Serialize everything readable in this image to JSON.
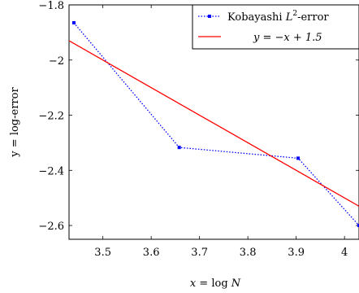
{
  "chart_data": {
    "type": "line",
    "xlabel_parts": {
      "var": "x",
      "eq": " = log ",
      "n": "N"
    },
    "ylabel": "y = log-error",
    "xlim": [
      3.43,
      4.03
    ],
    "ylim": [
      -2.65,
      -1.8
    ],
    "xticks": [
      3.5,
      3.6,
      3.7,
      3.8,
      3.9,
      4.0
    ],
    "xtick_labels": [
      "3.5",
      "3.6",
      "3.7",
      "3.8",
      "3.9",
      "4"
    ],
    "yticks": [
      -1.8,
      -2.0,
      -2.2,
      -2.4,
      -2.6
    ],
    "ytick_labels": [
      "−1.8",
      "−2",
      "−2.2",
      "−2.4",
      "−2.6"
    ],
    "grid": false,
    "legend_position": "top-right",
    "series": [
      {
        "name": "Kobayashi L2-error",
        "legend_parts": {
          "text": "Kobayashi ",
          "var": "L",
          "sup": "2",
          "rest": "-error"
        },
        "style": "dotted",
        "marker": "square",
        "color": "#0000ff",
        "x": [
          3.44,
          3.658,
          3.904,
          4.03
        ],
        "y": [
          -1.865,
          -2.317,
          -2.356,
          -2.6
        ]
      },
      {
        "name": "y = −x + 1.5",
        "legend_parts": {
          "text": "y = −x + 1.5"
        },
        "style": "solid",
        "color": "#ff0000",
        "x": [
          3.43,
          4.03
        ],
        "y": [
          -1.93,
          -2.53
        ]
      }
    ]
  }
}
